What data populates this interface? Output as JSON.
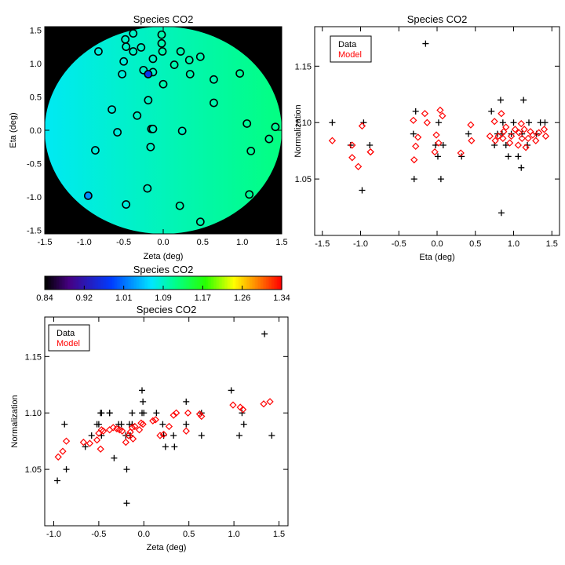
{
  "chart_data": [
    {
      "id": "map",
      "type": "heatmap",
      "title": "Species CO2",
      "xlabel": "Zeta (deg)",
      "ylabel": "Eta (deg)",
      "xlim": [
        -1.5,
        1.5
      ],
      "ylim": [
        -1.55,
        1.55
      ],
      "xticks": [
        -1.5,
        -1.0,
        -0.5,
        0.0,
        0.5,
        1.0,
        1.5
      ],
      "yticks": [
        -1.5,
        -1.0,
        -0.5,
        0.0,
        0.5,
        1.0,
        1.5
      ],
      "field_radius_deg": 1.5,
      "field_gradient": {
        "left_value": 1.07,
        "right_value": 1.12
      },
      "points": [
        {
          "zeta": -0.82,
          "eta": 1.18,
          "value": 1.08
        },
        {
          "zeta": -0.38,
          "eta": 1.45,
          "value": 1.09
        },
        {
          "zeta": -0.48,
          "eta": 1.36,
          "value": 1.09
        },
        {
          "zeta": -0.02,
          "eta": 1.43,
          "value": 1.1
        },
        {
          "zeta": -0.47,
          "eta": 1.25,
          "value": 1.09
        },
        {
          "zeta": -0.28,
          "eta": 1.24,
          "value": 1.09
        },
        {
          "zeta": -0.02,
          "eta": 1.3,
          "value": 1.1
        },
        {
          "zeta": -0.38,
          "eta": 1.18,
          "value": 1.09
        },
        {
          "zeta": -0.01,
          "eta": 1.18,
          "value": 1.1
        },
        {
          "zeta": 0.22,
          "eta": 1.18,
          "value": 1.1
        },
        {
          "zeta": -0.5,
          "eta": 1.03,
          "value": 1.08
        },
        {
          "zeta": -0.13,
          "eta": 1.07,
          "value": 1.09
        },
        {
          "zeta": 0.14,
          "eta": 0.98,
          "value": 1.1
        },
        {
          "zeta": 0.33,
          "eta": 1.05,
          "value": 1.1
        },
        {
          "zeta": 0.47,
          "eta": 1.1,
          "value": 1.1
        },
        {
          "zeta": -0.25,
          "eta": 0.9,
          "value": 1.09
        },
        {
          "zeta": -0.13,
          "eta": 0.87,
          "value": 1.09
        },
        {
          "zeta": -0.52,
          "eta": 0.84,
          "value": 1.08
        },
        {
          "zeta": -0.19,
          "eta": 0.84,
          "value": 0.97
        },
        {
          "zeta": 0.34,
          "eta": 0.84,
          "value": 1.1
        },
        {
          "zeta": 0.97,
          "eta": 0.85,
          "value": 1.11
        },
        {
          "zeta": 0.64,
          "eta": 0.76,
          "value": 1.1
        },
        {
          "zeta": 0.0,
          "eta": 0.69,
          "value": 1.1
        },
        {
          "zeta": -0.19,
          "eta": 0.45,
          "value": 1.09
        },
        {
          "zeta": 0.64,
          "eta": 0.41,
          "value": 1.1
        },
        {
          "zeta": -0.65,
          "eta": 0.31,
          "value": 1.08
        },
        {
          "zeta": -0.33,
          "eta": 0.22,
          "value": 1.09
        },
        {
          "zeta": 1.06,
          "eta": 0.1,
          "value": 1.11
        },
        {
          "zeta": -0.15,
          "eta": 0.02,
          "value": 1.09
        },
        {
          "zeta": -0.13,
          "eta": 0.02,
          "value": 1.09
        },
        {
          "zeta": -0.58,
          "eta": -0.03,
          "value": 1.08
        },
        {
          "zeta": 0.24,
          "eta": -0.01,
          "value": 1.09
        },
        {
          "zeta": 1.42,
          "eta": 0.05,
          "value": 1.11
        },
        {
          "zeta": 1.34,
          "eta": -0.13,
          "value": 1.11
        },
        {
          "zeta": -0.16,
          "eta": -0.25,
          "value": 1.09
        },
        {
          "zeta": -0.86,
          "eta": -0.3,
          "value": 1.08
        },
        {
          "zeta": 1.11,
          "eta": -0.31,
          "value": 1.11
        },
        {
          "zeta": -0.2,
          "eta": -0.87,
          "value": 1.09
        },
        {
          "zeta": -0.95,
          "eta": -0.98,
          "value": 1.02
        },
        {
          "zeta": 1.09,
          "eta": -0.96,
          "value": 1.11
        },
        {
          "zeta": -0.47,
          "eta": -1.11,
          "value": 1.08
        },
        {
          "zeta": 0.21,
          "eta": -1.13,
          "value": 1.1
        },
        {
          "zeta": 0.47,
          "eta": -1.37,
          "value": 1.1
        }
      ]
    },
    {
      "id": "colorbar",
      "type": "colorbar",
      "title": "Species CO2",
      "range": [
        0.84,
        1.34
      ],
      "tick_labels": [
        "0.84",
        "0.92",
        "1.01",
        "1.09",
        "1.17",
        "1.26",
        "1.34"
      ]
    },
    {
      "id": "eta_plot",
      "type": "scatter",
      "title": "Species CO2",
      "xlabel": "Eta (deg)",
      "ylabel": "Normalization",
      "xlim": [
        -1.6,
        1.6
      ],
      "ylim": [
        1.0,
        1.185
      ],
      "xticks": [
        -1.5,
        -1.0,
        -0.5,
        0.0,
        0.5,
        1.0,
        1.5
      ],
      "yticks": [
        1.05,
        1.1,
        1.15
      ],
      "legend": {
        "position": "top-left",
        "entries": [
          {
            "label": "Data",
            "color": "#000000"
          },
          {
            "label": "Model",
            "color": "#ff0000"
          }
        ]
      },
      "series": [
        {
          "name": "Data",
          "marker": "plus",
          "color": "#000000",
          "x": [
            -1.37,
            -1.13,
            -0.98,
            -0.96,
            -0.88,
            -0.31,
            -0.3,
            -0.28,
            -0.15,
            -0.02,
            0.01,
            0.02,
            0.05,
            0.08,
            0.32,
            0.41,
            0.71,
            0.75,
            0.79,
            0.83,
            0.84,
            0.85,
            0.86,
            0.9,
            0.93,
            0.97,
            1.0,
            1.06,
            1.1,
            1.11,
            1.13,
            1.18,
            1.2,
            1.3,
            1.35,
            1.41
          ],
          "y": [
            1.1,
            1.08,
            1.04,
            1.1,
            1.08,
            1.09,
            1.05,
            1.11,
            1.17,
            1.08,
            1.07,
            1.1,
            1.05,
            1.08,
            1.07,
            1.09,
            1.11,
            1.08,
            1.09,
            1.12,
            1.02,
            1.09,
            1.1,
            1.08,
            1.07,
            1.09,
            1.1,
            1.07,
            1.06,
            1.09,
            1.12,
            1.08,
            1.1,
            1.09,
            1.1,
            1.1
          ]
        },
        {
          "name": "Model",
          "marker": "diamond",
          "color": "#ff0000",
          "x": [
            -1.37,
            -1.11,
            -1.11,
            -1.03,
            -0.98,
            -0.87,
            -0.87,
            -0.31,
            -0.3,
            -0.28,
            -0.25,
            -0.16,
            -0.13,
            -0.03,
            -0.01,
            0.02,
            0.04,
            0.07,
            0.31,
            0.44,
            0.45,
            0.69,
            0.75,
            0.76,
            0.8,
            0.84,
            0.86,
            0.87,
            0.9,
            0.95,
            0.97,
            1.02,
            1.06,
            1.07,
            1.1,
            1.11,
            1.14,
            1.16,
            1.19,
            1.22,
            1.25,
            1.29,
            1.33,
            1.4,
            1.42
          ],
          "y": [
            1.084,
            1.08,
            1.069,
            1.061,
            1.097,
            1.074,
            1.074,
            1.102,
            1.067,
            1.079,
            1.087,
            1.108,
            1.1,
            1.074,
            1.089,
            1.082,
            1.111,
            1.106,
            1.073,
            1.098,
            1.084,
            1.088,
            1.101,
            1.084,
            1.088,
            1.108,
            1.086,
            1.092,
            1.096,
            1.082,
            1.088,
            1.094,
            1.08,
            1.091,
            1.099,
            1.086,
            1.094,
            1.078,
            1.086,
            1.092,
            1.089,
            1.084,
            1.091,
            1.094,
            1.088
          ]
        }
      ]
    },
    {
      "id": "zeta_plot",
      "type": "scatter",
      "title": "Species CO2",
      "xlabel": "Zeta (deg)",
      "ylabel": "Normalization",
      "xlim": [
        -1.1,
        1.6
      ],
      "ylim": [
        1.0,
        1.185
      ],
      "xticks": [
        -1.0,
        -0.5,
        0.0,
        0.5,
        1.0,
        1.5
      ],
      "yticks": [
        1.05,
        1.1,
        1.15
      ],
      "legend": {
        "position": "top-left",
        "entries": [
          {
            "label": "Data",
            "color": "#000000"
          },
          {
            "label": "Model",
            "color": "#ff0000"
          }
        ]
      },
      "series": [
        {
          "name": "Data",
          "marker": "plus",
          "color": "#000000",
          "x": [
            -0.96,
            -0.88,
            -0.86,
            -0.65,
            -0.58,
            -0.52,
            -0.5,
            -0.48,
            -0.47,
            -0.47,
            -0.38,
            -0.38,
            -0.33,
            -0.28,
            -0.25,
            -0.2,
            -0.19,
            -0.19,
            -0.16,
            -0.15,
            -0.13,
            -0.13,
            -0.02,
            -0.02,
            -0.01,
            0.0,
            0.14,
            0.21,
            0.22,
            0.24,
            0.33,
            0.34,
            0.47,
            0.47,
            0.64,
            0.64,
            0.97,
            1.06,
            1.09,
            1.11,
            1.34,
            1.42
          ],
          "y": [
            1.04,
            1.09,
            1.05,
            1.07,
            1.08,
            1.09,
            1.09,
            1.1,
            1.1,
            1.08,
            1.1,
            1.1,
            1.06,
            1.09,
            1.09,
            1.08,
            1.02,
            1.05,
            1.09,
            1.08,
            1.09,
            1.1,
            1.1,
            1.12,
            1.11,
            1.1,
            1.1,
            1.09,
            1.08,
            1.07,
            1.08,
            1.07,
            1.11,
            1.09,
            1.1,
            1.08,
            1.12,
            1.08,
            1.1,
            1.09,
            1.17,
            1.08
          ]
        },
        {
          "name": "Model",
          "marker": "diamond",
          "color": "#ff0000",
          "x": [
            -0.95,
            -0.9,
            -0.86,
            -0.67,
            -0.6,
            -0.52,
            -0.5,
            -0.48,
            -0.47,
            -0.45,
            -0.38,
            -0.34,
            -0.3,
            -0.27,
            -0.24,
            -0.2,
            -0.17,
            -0.15,
            -0.13,
            -0.12,
            -0.1,
            -0.05,
            -0.03,
            -0.01,
            0.1,
            0.13,
            0.18,
            0.22,
            0.28,
            0.33,
            0.36,
            0.47,
            0.49,
            0.62,
            0.64,
            0.99,
            1.07,
            1.1,
            1.33,
            1.4
          ],
          "y": [
            1.061,
            1.066,
            1.075,
            1.074,
            1.073,
            1.076,
            1.082,
            1.068,
            1.085,
            1.084,
            1.085,
            1.087,
            1.086,
            1.085,
            1.084,
            1.074,
            1.08,
            1.083,
            1.087,
            1.077,
            1.088,
            1.085,
            1.091,
            1.09,
            1.093,
            1.094,
            1.08,
            1.081,
            1.088,
            1.098,
            1.1,
            1.084,
            1.1,
            1.099,
            1.097,
            1.107,
            1.105,
            1.103,
            1.108,
            1.11
          ]
        }
      ]
    }
  ]
}
